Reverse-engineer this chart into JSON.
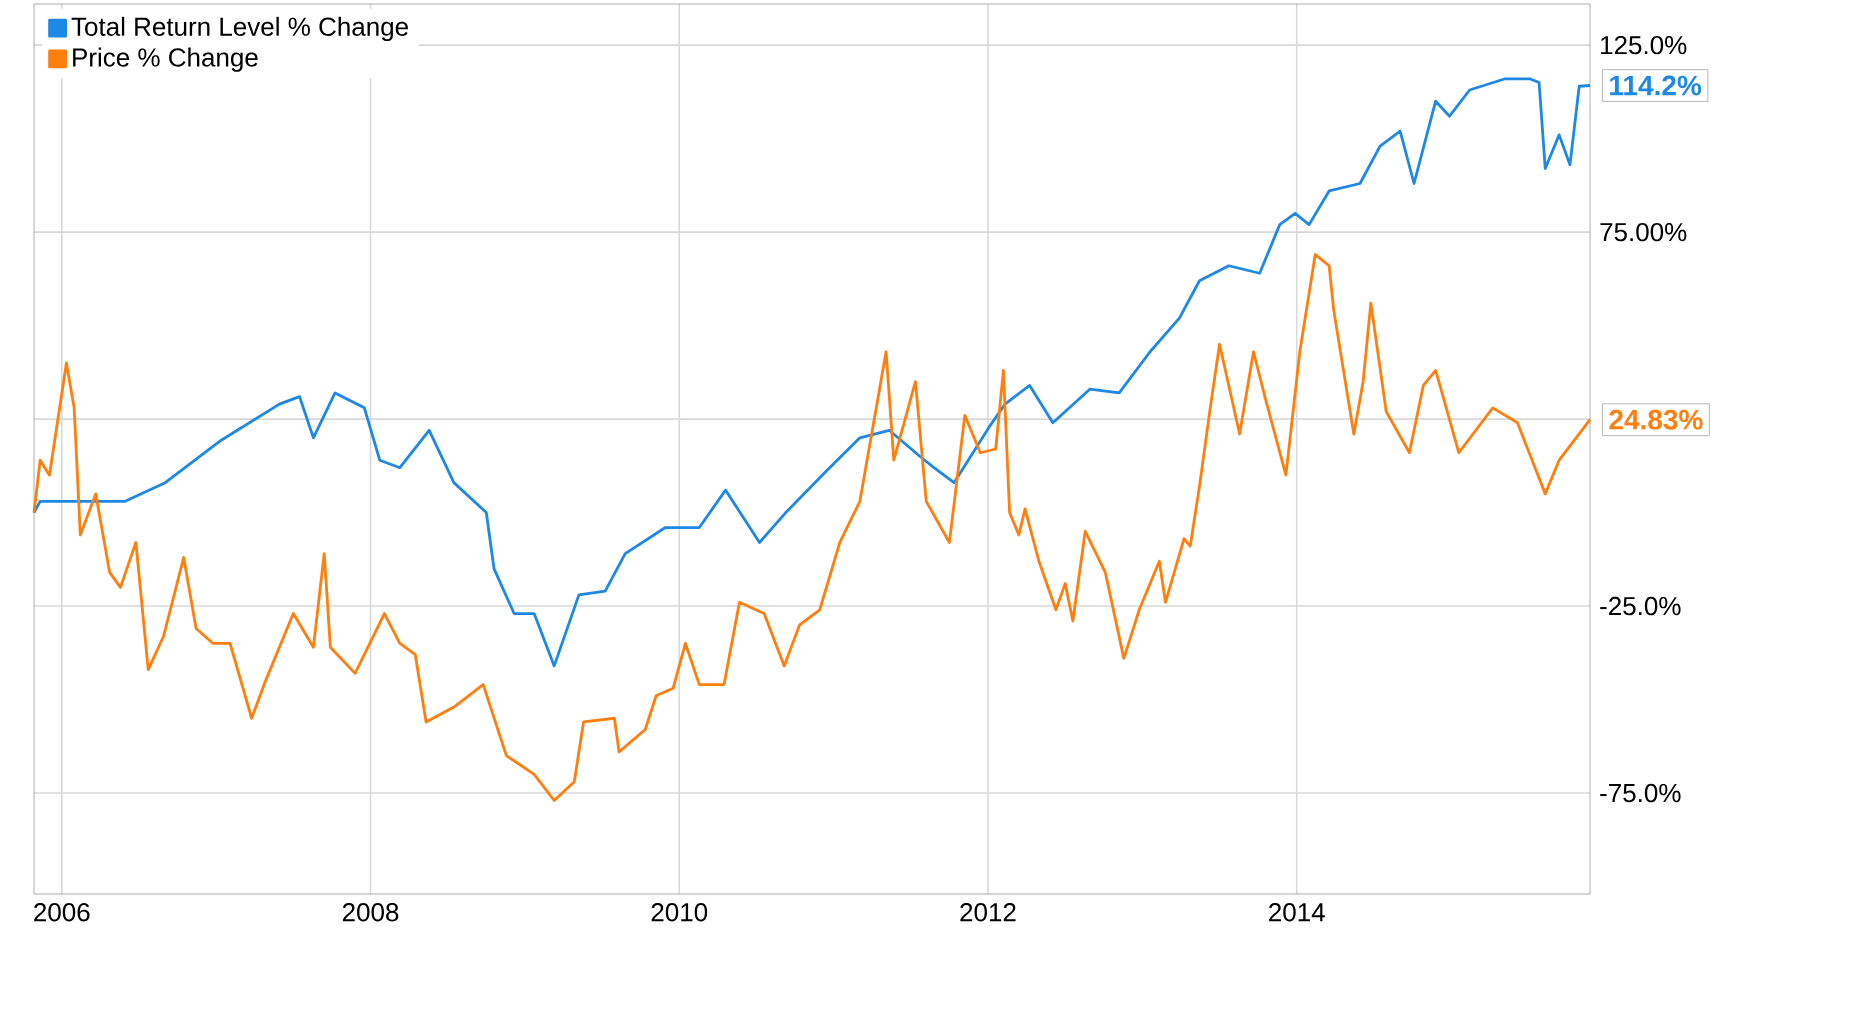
{
  "chart_data": {
    "type": "line",
    "xlim": [
      2005.82,
      2015.9
    ],
    "xticks": [
      2006,
      2008,
      2010,
      2012,
      2014
    ],
    "ylim": [
      -102,
      136
    ],
    "yticks": [
      {
        "value": 125,
        "label": "125.0%"
      },
      {
        "value": 75,
        "label": "75.00%"
      },
      {
        "value": 25,
        "label": null
      },
      {
        "value": -25,
        "label": "-25.0%"
      },
      {
        "value": -75,
        "label": "-75.0%"
      }
    ],
    "grid": true,
    "legend": "top left",
    "series": [
      {
        "name": "Total Return Level % Change",
        "color": "#1e88e5",
        "x": [
          2005.82,
          2005.86,
          2006.41,
          2006.67,
          2007.02,
          2007.41,
          2007.54,
          2007.63,
          2007.77,
          2007.96,
          2008.06,
          2008.19,
          2008.38,
          2008.54,
          2008.75,
          2008.8,
          2008.93,
          2009.06,
          2009.19,
          2009.35,
          2009.52,
          2009.65,
          2009.91,
          2010.13,
          2010.3,
          2010.52,
          2010.69,
          2010.95,
          2011.17,
          2011.36,
          2011.56,
          2011.65,
          2011.78,
          2012.01,
          2012.11,
          2012.27,
          2012.42,
          2012.66,
          2012.85,
          2013.05,
          2013.24,
          2013.37,
          2013.56,
          2013.76,
          2013.89,
          2013.99,
          2014.08,
          2014.21,
          2014.41,
          2014.54,
          2014.67,
          2014.76,
          2014.9,
          2014.99,
          2015.12,
          2015.35,
          2015.51,
          2015.57,
          2015.61,
          2015.7,
          2015.77,
          2015.83,
          2015.9
        ],
        "values": [
          0,
          3,
          3,
          8,
          19,
          29,
          31,
          20,
          32,
          28,
          14,
          12,
          22,
          8,
          0,
          -15,
          -27,
          -27,
          -41,
          -22,
          -21,
          -11,
          -4,
          -4,
          6,
          -8,
          0,
          11,
          20,
          22,
          15,
          12,
          8,
          23,
          29,
          34,
          24,
          33,
          32,
          43,
          52,
          62,
          66,
          64,
          77,
          80,
          77,
          86,
          88,
          98,
          102,
          88,
          110,
          106,
          113,
          116,
          116,
          115,
          92,
          101,
          93,
          114,
          114.2
        ],
        "value_labels": [
          null,
          null,
          null,
          null,
          null,
          null,
          null,
          null,
          null,
          null,
          null,
          null,
          null,
          null,
          null,
          null,
          null,
          null,
          null,
          null,
          null,
          null,
          null,
          null,
          null,
          null,
          null,
          null,
          null,
          null,
          null,
          null,
          null,
          null,
          null,
          null,
          null,
          null,
          null,
          null,
          null,
          null,
          null,
          null,
          null,
          null,
          null,
          null,
          null,
          null,
          null,
          null,
          null,
          null,
          null,
          null,
          null,
          null,
          null,
          null,
          null,
          null,
          "114.2%"
        ]
      },
      {
        "name": "Price % Change",
        "color": "#ff7f0e",
        "x": [
          2005.82,
          2005.86,
          2005.92,
          2006.03,
          2006.08,
          2006.12,
          2006.22,
          2006.31,
          2006.38,
          2006.48,
          2006.56,
          2006.66,
          2006.79,
          2006.87,
          2006.98,
          2007.09,
          2007.23,
          2007.32,
          2007.5,
          2007.63,
          2007.7,
          2007.74,
          2007.9,
          2008.09,
          2008.19,
          2008.29,
          2008.36,
          2008.54,
          2008.73,
          2008.88,
          2009.06,
          2009.19,
          2009.32,
          2009.38,
          2009.58,
          2009.61,
          2009.78,
          2009.85,
          2009.96,
          2010.04,
          2010.13,
          2010.29,
          2010.39,
          2010.55,
          2010.68,
          2010.78,
          2010.91,
          2011.04,
          2011.17,
          2011.34,
          2011.39,
          2011.53,
          2011.6,
          2011.75,
          2011.85,
          2011.95,
          2012.05,
          2012.1,
          2012.14,
          2012.2,
          2012.24,
          2012.33,
          2012.44,
          2012.5,
          2012.55,
          2012.63,
          2012.76,
          2012.88,
          2012.98,
          2013.11,
          2013.15,
          2013.27,
          2013.31,
          2013.37,
          2013.44,
          2013.5,
          2013.63,
          2013.72,
          2013.8,
          2013.93,
          2014.02,
          2014.12,
          2014.21,
          2014.24,
          2014.37,
          2014.43,
          2014.48,
          2014.58,
          2014.73,
          2014.82,
          2014.9,
          2015.05,
          2015.27,
          2015.43,
          2015.61,
          2015.7,
          2015.9
        ],
        "values": [
          0,
          14,
          10,
          40,
          28,
          -6,
          5,
          -16,
          -20,
          -8,
          -42,
          -33,
          -12,
          -31,
          -35,
          -35,
          -55,
          -45,
          -27,
          -36,
          -11,
          -36,
          -43,
          -27,
          -35,
          -38,
          -56,
          -52,
          -46,
          -65,
          -70,
          -77,
          -72,
          -56,
          -55,
          -64,
          -58,
          -49,
          -47,
          -35,
          -46,
          -46,
          -24,
          -27,
          -41,
          -30,
          -26,
          -8,
          3,
          43,
          14,
          35,
          3,
          -8,
          26,
          16,
          17,
          38,
          0,
          -6,
          1,
          -13,
          -26,
          -19,
          -29,
          -5,
          -16,
          -39,
          -26,
          -13,
          -24,
          -7,
          -9,
          7,
          28,
          45,
          21,
          43,
          30,
          10,
          43,
          69,
          66,
          54,
          21,
          35,
          56,
          27,
          16,
          34,
          38,
          16,
          28,
          24,
          5,
          14,
          24.83
        ],
        "value_labels": [
          null,
          null,
          null,
          null,
          null,
          null,
          null,
          null,
          null,
          null,
          null,
          null,
          null,
          null,
          null,
          null,
          null,
          null,
          null,
          null,
          null,
          null,
          null,
          null,
          null,
          null,
          null,
          null,
          null,
          null,
          null,
          null,
          null,
          null,
          null,
          null,
          null,
          null,
          null,
          null,
          null,
          null,
          null,
          null,
          null,
          null,
          null,
          null,
          null,
          null,
          null,
          null,
          null,
          null,
          null,
          null,
          null,
          null,
          null,
          null,
          null,
          null,
          null,
          null,
          null,
          null,
          null,
          null,
          null,
          null,
          null,
          null,
          null,
          null,
          null,
          null,
          null,
          null,
          null,
          null,
          null,
          null,
          null,
          null,
          null,
          null,
          null,
          null,
          null,
          null,
          null,
          null,
          null,
          null,
          null,
          null,
          "24.83%"
        ]
      }
    ]
  }
}
